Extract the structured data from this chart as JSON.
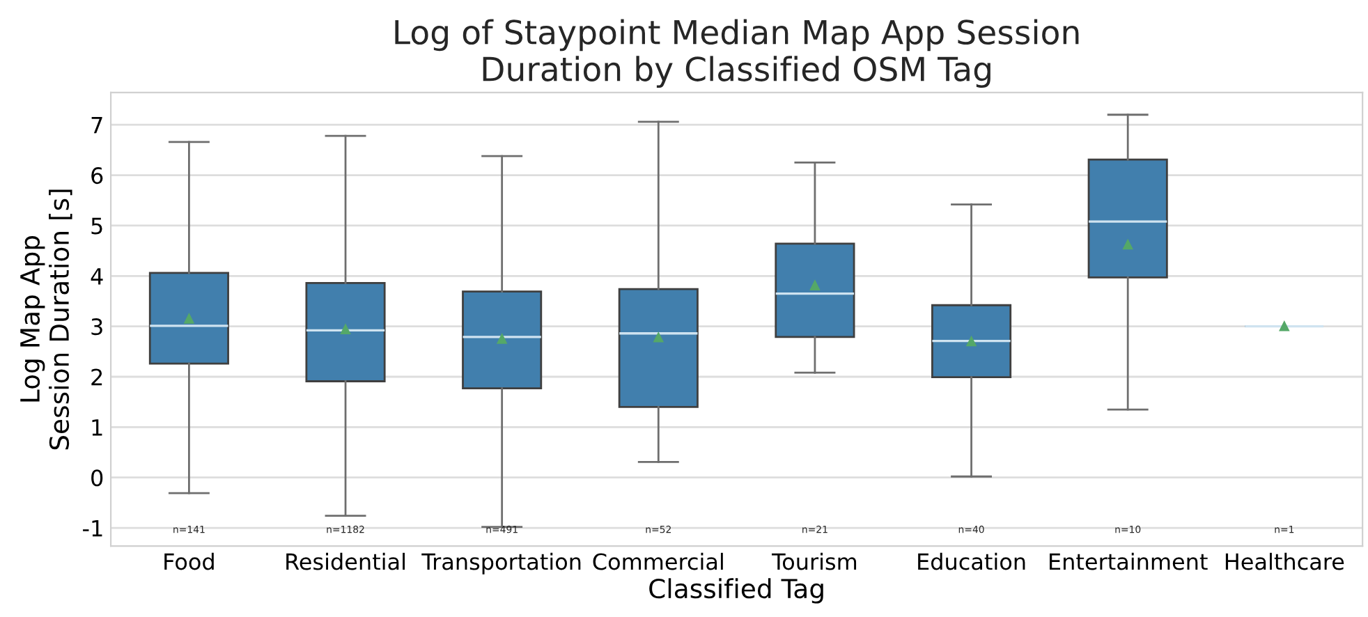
{
  "chart_data": {
    "type": "box",
    "title": "Log of Staypoint Median Map App Session\nDuration by Classified OSM Tag",
    "xlabel": "Classified Tag",
    "ylabel": "Log Map App\nSession Duration [s]",
    "categories": [
      "Food",
      "Residential",
      "Transportation",
      "Commercial",
      "Tourism",
      "Education",
      "Entertainment",
      "Healthcare"
    ],
    "series": [
      {
        "color": "#417fad",
        "boxes": [
          {
            "low": -0.31,
            "q1": 2.26,
            "median": 3.01,
            "q3": 4.06,
            "high": 6.66,
            "mean": 3.15
          },
          {
            "low": -0.76,
            "q1": 1.91,
            "median": 2.92,
            "q3": 3.86,
            "high": 6.78,
            "mean": 2.94
          },
          {
            "low": -0.98,
            "q1": 1.77,
            "median": 2.79,
            "q3": 3.69,
            "high": 6.38,
            "mean": 2.75
          },
          {
            "low": 0.31,
            "q1": 1.4,
            "median": 2.86,
            "q3": 3.74,
            "high": 7.06,
            "mean": 2.78
          },
          {
            "low": 2.08,
            "q1": 2.79,
            "median": 3.65,
            "q3": 4.64,
            "high": 6.25,
            "mean": 3.81
          },
          {
            "low": 0.02,
            "q1": 1.99,
            "median": 2.71,
            "q3": 3.42,
            "high": 5.42,
            "mean": 2.7
          },
          {
            "low": 1.35,
            "q1": 3.97,
            "median": 5.08,
            "q3": 6.31,
            "high": 7.2,
            "mean": 4.62
          },
          {
            "low": 3.0,
            "q1": 3.0,
            "median": 3.0,
            "q3": 3.0,
            "high": 3.0,
            "mean": 3.0
          }
        ]
      }
    ],
    "ylim": [
      -1.36,
      7.64
    ],
    "yticks": [
      -1,
      0,
      1,
      2,
      3,
      4,
      5,
      6,
      7
    ],
    "grid": "y",
    "annotations": [
      "n=141",
      "n=1182",
      "n=491",
      "n=52",
      "n=21",
      "n=40",
      "n=10",
      "n=1"
    ]
  }
}
